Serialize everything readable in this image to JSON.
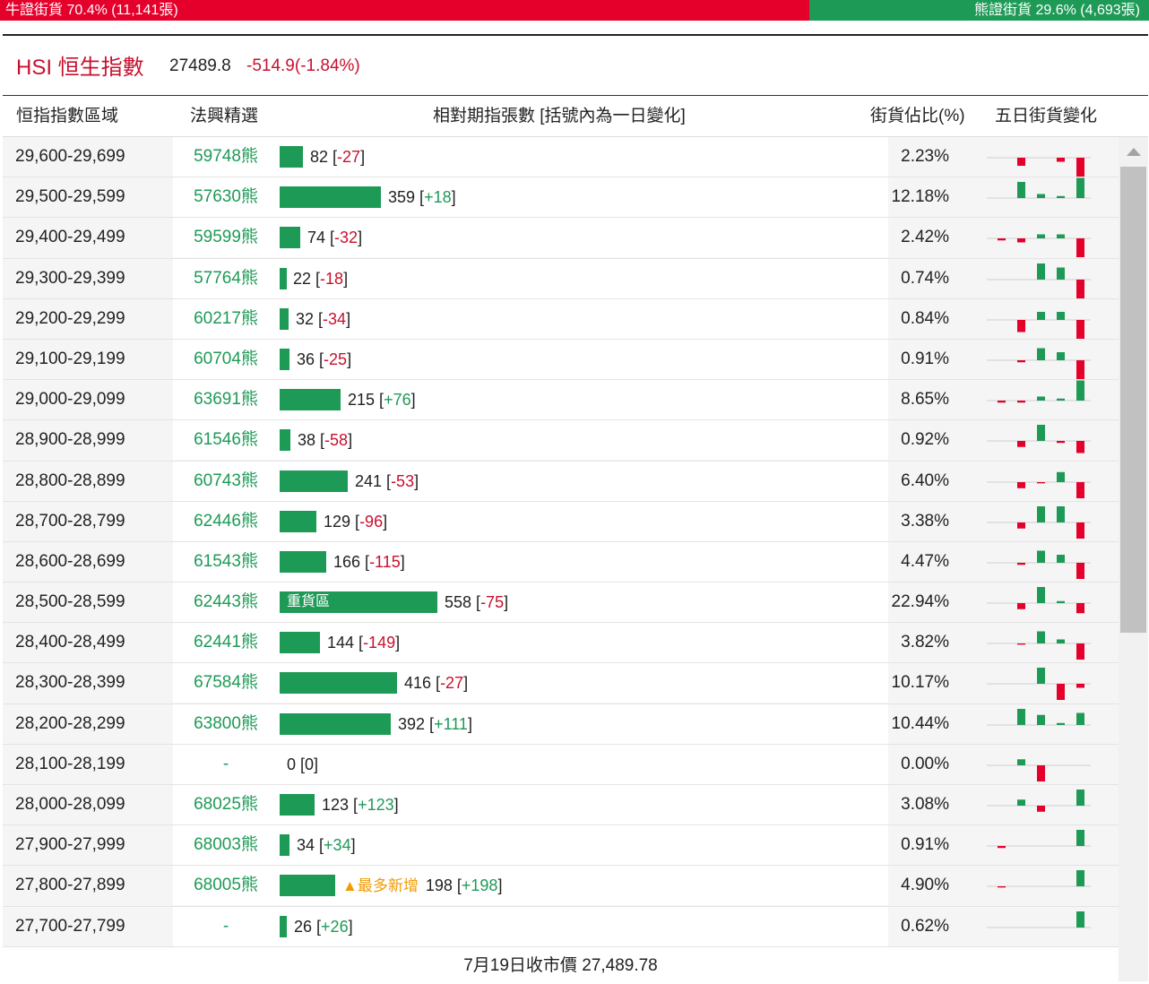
{
  "topbar": {
    "bull_label": "牛證街貨 70.4% (11,141張)",
    "bear_label": "熊證街貨 29.6% (4,693張)",
    "bull_ratio": 0.704
  },
  "header": {
    "title": "HSI 恒生指數",
    "price": "27489.8",
    "change": "-514.9(-1.84%)"
  },
  "columns": {
    "range": "恒指指數區域",
    "pick": "法興精選",
    "contracts": "相對期指張數 [括號內為一日變化]",
    "share": "街貨佔比(%)",
    "five_day": "五日街貨變化"
  },
  "colors": {
    "green": "#1e9a57",
    "red": "#e4002b"
  },
  "heavy_label": "重貨區",
  "max_new_label": "最多新增",
  "max_value": 558,
  "rows": [
    {
      "range": "29,600-29,699",
      "code": "59748熊",
      "value": 82,
      "change": "-27",
      "pct": "2.23%",
      "spark": [
        0,
        -2,
        0,
        -1,
        -5
      ]
    },
    {
      "range": "29,500-29,599",
      "code": "57630熊",
      "value": 359,
      "change": "+18",
      "pct": "12.18%",
      "spark": [
        0,
        4,
        1,
        0.5,
        5
      ]
    },
    {
      "range": "29,400-29,499",
      "code": "59599熊",
      "value": 74,
      "change": "-32",
      "pct": "2.42%",
      "spark": [
        -0.5,
        -1,
        1,
        1,
        -5
      ]
    },
    {
      "range": "29,300-29,399",
      "code": "57764熊",
      "value": 22,
      "change": "-18",
      "pct": "0.74%",
      "spark": [
        0,
        0,
        4,
        3,
        -5
      ]
    },
    {
      "range": "29,200-29,299",
      "code": "60217熊",
      "value": 32,
      "change": "-34",
      "pct": "0.84%",
      "spark": [
        0,
        -3,
        2,
        2,
        -5
      ]
    },
    {
      "range": "29,100-29,199",
      "code": "60704熊",
      "value": 36,
      "change": "-25",
      "pct": "0.91%",
      "spark": [
        0,
        -0.5,
        3,
        2,
        -5
      ]
    },
    {
      "range": "29,000-29,099",
      "code": "63691熊",
      "value": 215,
      "change": "+76",
      "pct": "8.65%",
      "spark": [
        -0.5,
        -0.5,
        1,
        0.5,
        5
      ]
    },
    {
      "range": "28,900-28,999",
      "code": "61546熊",
      "value": 38,
      "change": "-58",
      "pct": "0.92%",
      "spark": [
        0,
        -1.5,
        4,
        -0.5,
        -3
      ]
    },
    {
      "range": "28,800-28,899",
      "code": "60743熊",
      "value": 241,
      "change": "-53",
      "pct": "6.40%",
      "spark": [
        0,
        -1.5,
        -0.3,
        2.5,
        -4
      ]
    },
    {
      "range": "28,700-28,799",
      "code": "62446熊",
      "value": 129,
      "change": "-96",
      "pct": "3.38%",
      "spark": [
        0,
        -1.5,
        4,
        4,
        -4
      ]
    },
    {
      "range": "28,600-28,699",
      "code": "61543熊",
      "value": 166,
      "change": "-115",
      "pct": "4.47%",
      "spark": [
        0,
        -0.5,
        3,
        2,
        -4
      ]
    },
    {
      "range": "28,500-28,599",
      "code": "62443熊",
      "value": 558,
      "change": "-75",
      "pct": "22.94%",
      "spark": [
        0,
        -1.5,
        4,
        0.5,
        -2.5
      ],
      "heavy": true
    },
    {
      "range": "28,400-28,499",
      "code": "62441熊",
      "value": 144,
      "change": "-149",
      "pct": "3.82%",
      "spark": [
        0,
        -0.3,
        3,
        1,
        -4
      ]
    },
    {
      "range": "28,300-28,399",
      "code": "67584熊",
      "value": 416,
      "change": "-27",
      "pct": "10.17%",
      "spark": [
        0,
        0,
        4,
        -4,
        -1
      ]
    },
    {
      "range": "28,200-28,299",
      "code": "63800熊",
      "value": 392,
      "change": "+111",
      "pct": "10.44%",
      "spark": [
        0,
        4,
        2.5,
        0.5,
        3
      ]
    },
    {
      "range": "28,100-28,199",
      "code": "-",
      "value": 0,
      "change": "0",
      "pct": "0.00%",
      "spark": [
        0,
        1.5,
        -4,
        0,
        0
      ]
    },
    {
      "range": "28,000-28,099",
      "code": "68025熊",
      "value": 123,
      "change": "+123",
      "pct": "3.08%",
      "spark": [
        0,
        1.5,
        -1.5,
        0,
        4
      ]
    },
    {
      "range": "27,900-27,999",
      "code": "68003熊",
      "value": 34,
      "change": "+34",
      "pct": "0.91%",
      "spark": [
        -0.5,
        0,
        0,
        0,
        4
      ]
    },
    {
      "range": "27,800-27,899",
      "code": "68005熊",
      "value": 198,
      "change": "+198",
      "pct": "4.90%",
      "spark": [
        -0.3,
        0,
        0,
        0,
        4
      ],
      "max_new": true
    },
    {
      "range": "27,700-27,799",
      "code": "-",
      "value": 26,
      "change": "+26",
      "pct": "0.62%",
      "spark": [
        0,
        0,
        0,
        0,
        4
      ]
    }
  ],
  "footer": "7月19日收市價 27,489.78"
}
